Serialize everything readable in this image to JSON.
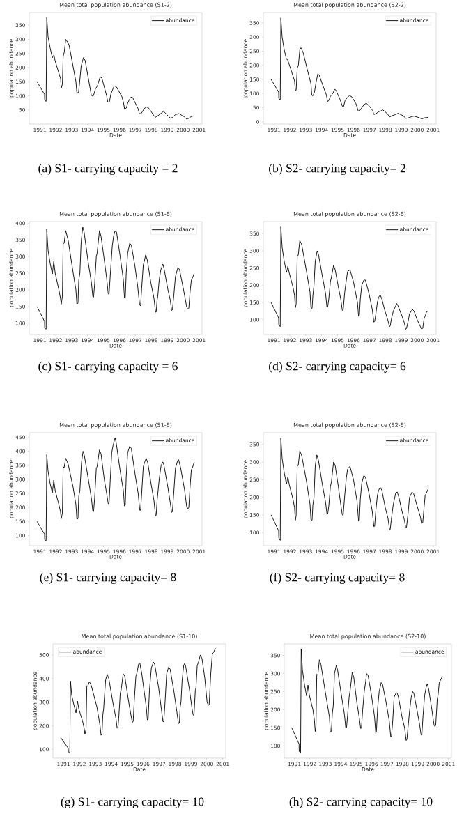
{
  "chart_data": [
    {
      "type": "line",
      "title": "Mean total population abundance (S1-2)",
      "xlabel": "Date",
      "ylabel": "population abundance",
      "annotations": [
        "(a) S1- carrying capacity = 2"
      ],
      "legend": "top right",
      "xlim": [
        1990.34,
        2001.19
      ],
      "xticks": [
        1991,
        1992,
        1993,
        1994,
        1995,
        1996,
        1997,
        1998,
        1999,
        2000,
        2001
      ],
      "ylim": [
        0,
        395
      ],
      "yticks": [
        50,
        100,
        150,
        200,
        250,
        300,
        350
      ],
      "series": [
        {
          "name": "abundance",
          "color": "#000000",
          "x": [
            1990.83,
            1991.3,
            1991.31,
            1991.4,
            1991.44,
            1991.52,
            1991.65,
            1991.79,
            1991.89,
            1991.96,
            1992.31,
            1992.35,
            1992.42,
            1992.47,
            1992.54,
            1992.63,
            1992.75,
            1992.84,
            1993.27,
            1993.33,
            1993.43,
            1993.48,
            1993.6,
            1993.74,
            1993.85,
            1994.23,
            1994.29,
            1994.37,
            1994.5,
            1994.62,
            1994.79,
            1994.9,
            1995.2,
            1995.27,
            1995.37,
            1995.46,
            1995.67,
            1995.81,
            1996.16,
            1996.26,
            1996.33,
            1996.44,
            1996.51,
            1996.61,
            1996.72,
            1996.82,
            1997.17,
            1997.26,
            1997.38,
            1997.56,
            1997.7,
            1997.82,
            1998.17,
            1998.26,
            1998.43,
            1998.78,
            1999.22,
            1999.34,
            1999.51,
            1999.74,
            2000.09,
            2000.21,
            2000.35,
            2000.53,
            2000.7
          ],
          "values": [
            150,
            105,
            85,
            80,
            377,
            310,
            270,
            235,
            245,
            225,
            160,
            128,
            140,
            240,
            255,
            300,
            290,
            280,
            150,
            112,
            110,
            135,
            205,
            235,
            225,
            105,
            99,
            100,
            125,
            135,
            167,
            163,
            100,
            78,
            78,
            105,
            135,
            132,
            97,
            75,
            52,
            57,
            72,
            85,
            95,
            95,
            55,
            36,
            38,
            55,
            60,
            58,
            30,
            24,
            30,
            45,
            20,
            24,
            33,
            37,
            25,
            18,
            20,
            27,
            29
          ]
        }
      ]
    },
    {
      "type": "line",
      "title": "Mean total population abundance (S2-2)",
      "xlabel": "Date",
      "ylabel": "population abundance",
      "annotations": [
        "(b) S2- carrying capacity= 2"
      ],
      "legend": "top right",
      "xlim": [
        1990.34,
        2001.19
      ],
      "xticks": [
        1991,
        1992,
        1993,
        1994,
        1995,
        1996,
        1997,
        1998,
        1999,
        2000,
        2001
      ],
      "ylim": [
        -8,
        387
      ],
      "yticks": [
        0,
        50,
        100,
        150,
        200,
        250,
        300,
        350
      ],
      "series": [
        {
          "name": "abundance",
          "color": "#000000",
          "x": [
            1990.83,
            1991.3,
            1991.31,
            1991.4,
            1991.44,
            1991.52,
            1991.65,
            1991.79,
            1991.85,
            1992.1,
            1992.3,
            1992.35,
            1992.4,
            1992.47,
            1992.54,
            1992.63,
            1992.7,
            1992.84,
            1993.1,
            1993.33,
            1993.38,
            1993.45,
            1993.55,
            1993.65,
            1993.76,
            1993.85,
            1994.1,
            1994.3,
            1994.37,
            1994.45,
            1994.55,
            1994.7,
            1994.82,
            1994.9,
            1995.15,
            1995.3,
            1995.37,
            1995.47,
            1995.6,
            1995.75,
            1995.9,
            1996.15,
            1996.3,
            1996.4,
            1996.55,
            1996.65,
            1996.8,
            1997.0,
            1997.2,
            1997.28,
            1997.4,
            1997.55,
            1997.7,
            1997.85,
            1998.1,
            1998.28,
            1998.4,
            1998.6,
            1998.8,
            1999.1,
            1999.3,
            1999.45,
            1999.65,
            1999.8,
            2000.1,
            2000.3,
            2000.45,
            2000.6,
            2000.7
          ],
          "values": [
            150,
            105,
            83,
            78,
            368,
            300,
            255,
            222,
            222,
            180,
            145,
            110,
            112,
            190,
            200,
            255,
            262,
            245,
            185,
            135,
            95,
            92,
            105,
            140,
            170,
            165,
            125,
            95,
            72,
            75,
            90,
            100,
            115,
            112,
            80,
            55,
            52,
            75,
            85,
            93,
            88,
            65,
            38,
            40,
            52,
            60,
            66,
            55,
            40,
            26,
            28,
            35,
            38,
            42,
            30,
            17,
            21,
            25,
            30,
            22,
            12,
            14,
            18,
            20,
            15,
            10,
            14,
            15,
            16
          ]
        }
      ]
    },
    {
      "type": "line",
      "title": "Mean total population abundance (S1-6)",
      "xlabel": "Date",
      "ylabel": "population abundance",
      "annotations": [
        "(c) S1- carrying capacity = 6"
      ],
      "legend": "top right",
      "xlim": [
        1990.34,
        2001.19
      ],
      "xticks": [
        1991,
        1992,
        1993,
        1994,
        1995,
        1996,
        1997,
        1998,
        1999,
        2000,
        2001
      ],
      "ylim": [
        66,
        405
      ],
      "yticks": [
        100,
        150,
        200,
        250,
        300,
        350,
        400
      ],
      "series": [
        {
          "name": "abundance",
          "color": "#000000",
          "x": [
            1990.83,
            1991.3,
            1991.31,
            1991.4,
            1991.44,
            1991.52,
            1991.65,
            1991.79,
            1991.88,
            1991.97,
            1992.2,
            1992.3,
            1992.35,
            1992.42,
            1992.47,
            1992.53,
            1992.63,
            1992.78,
            1993.1,
            1993.27,
            1993.33,
            1993.4,
            1993.45,
            1993.52,
            1993.6,
            1993.7,
            1993.78,
            1994.05,
            1994.25,
            1994.33,
            1994.38,
            1994.45,
            1994.55,
            1994.6,
            1994.75,
            1994.85,
            1995.05,
            1995.2,
            1995.3,
            1995.35,
            1995.45,
            1995.55,
            1995.63,
            1995.72,
            1995.82,
            1996.05,
            1996.25,
            1996.32,
            1996.37,
            1996.43,
            1996.52,
            1996.65,
            1996.75,
            1996.98,
            1997.15,
            1997.27,
            1997.33,
            1997.4,
            1997.5,
            1997.56,
            1997.65,
            1997.75,
            1997.98,
            1998.17,
            1998.27,
            1998.31,
            1998.37,
            1998.41,
            1998.5,
            1998.6,
            1998.73,
            1998.8,
            1999.05,
            1999.2,
            1999.28,
            1999.33,
            1999.43,
            1999.52,
            1999.68,
            1999.78,
            2000.05,
            2000.22,
            2000.3,
            2000.36,
            2000.44,
            2000.52,
            2000.58,
            2000.7
          ],
          "values": [
            150,
            105,
            85,
            82,
            382,
            320,
            280,
            248,
            285,
            250,
            200,
            175,
            157,
            180,
            340,
            340,
            378,
            350,
            250,
            200,
            158,
            160,
            230,
            250,
            345,
            388,
            375,
            280,
            220,
            180,
            178,
            220,
            300,
            310,
            378,
            360,
            290,
            235,
            188,
            186,
            260,
            330,
            360,
            376,
            374,
            300,
            230,
            175,
            178,
            250,
            310,
            340,
            335,
            270,
            210,
            155,
            152,
            205,
            275,
            285,
            305,
            290,
            220,
            175,
            133,
            133,
            170,
            180,
            230,
            260,
            277,
            265,
            200,
            168,
            138,
            140,
            190,
            240,
            268,
            260,
            195,
            150,
            142,
            145,
            195,
            230,
            235,
            250
          ]
        }
      ]
    },
    {
      "type": "line",
      "title": "Mean total population abundance (S2-6)",
      "xlabel": "Date",
      "ylabel": "population abundance",
      "annotations": [
        "(d) S2- carrying capacity= 6"
      ],
      "legend": "top right",
      "xlim": [
        1990.34,
        2001.19
      ],
      "xticks": [
        1991,
        1992,
        1993,
        1994,
        1995,
        1996,
        1997,
        1998,
        1999,
        2000,
        2001
      ],
      "ylim": [
        57,
        385
      ],
      "yticks": [
        100,
        150,
        200,
        250,
        300,
        350
      ],
      "series": [
        {
          "name": "abundance",
          "color": "#000000",
          "x": [
            1990.83,
            1991.3,
            1991.31,
            1991.4,
            1991.44,
            1991.52,
            1991.65,
            1991.79,
            1991.88,
            1991.97,
            1992.2,
            1992.3,
            1992.35,
            1992.4,
            1992.47,
            1992.53,
            1992.63,
            1992.75,
            1993.05,
            1993.27,
            1993.33,
            1993.4,
            1993.45,
            1993.52,
            1993.6,
            1993.72,
            1993.8,
            1994.05,
            1994.25,
            1994.33,
            1994.38,
            1994.45,
            1994.55,
            1994.62,
            1994.75,
            1994.85,
            1995.05,
            1995.2,
            1995.3,
            1995.35,
            1995.45,
            1995.55,
            1995.63,
            1995.78,
            1996.0,
            1996.25,
            1996.32,
            1996.37,
            1996.43,
            1996.52,
            1996.65,
            1996.75,
            1996.98,
            1997.18,
            1997.28,
            1997.33,
            1997.4,
            1997.5,
            1997.58,
            1997.68,
            1997.78,
            1997.98,
            1998.15,
            1998.26,
            1998.31,
            1998.37,
            1998.5,
            1998.72,
            1998.8,
            1999.05,
            1999.2,
            1999.28,
            1999.33,
            1999.43,
            1999.52,
            1999.7,
            1999.8,
            2000.0,
            2000.2,
            2000.27,
            2000.35,
            2000.44,
            2000.5,
            2000.58,
            2000.65,
            2000.7
          ],
          "values": [
            150,
            105,
            85,
            80,
            370,
            310,
            270,
            237,
            255,
            235,
            195,
            170,
            135,
            145,
            285,
            287,
            330,
            318,
            240,
            180,
            135,
            133,
            170,
            200,
            270,
            300,
            290,
            225,
            175,
            138,
            137,
            160,
            210,
            225,
            258,
            245,
            195,
            160,
            127,
            127,
            180,
            215,
            240,
            245,
            210,
            150,
            110,
            112,
            160,
            200,
            215,
            215,
            175,
            130,
            93,
            95,
            115,
            150,
            165,
            172,
            160,
            125,
            100,
            80,
            82,
            100,
            125,
            147,
            140,
            110,
            90,
            72,
            75,
            95,
            117,
            130,
            125,
            100,
            80,
            73,
            75,
            105,
            110,
            122,
            124,
            123
          ]
        }
      ]
    },
    {
      "type": "line",
      "title": "Mean total population abundance (S1-8)",
      "xlabel": "Date",
      "ylabel": "population abundance",
      "annotations": [
        "(e) S1- carrying capacity= 8"
      ],
      "legend": "top right",
      "xlim": [
        1990.34,
        2001.19
      ],
      "xticks": [
        1991,
        1992,
        1993,
        1994,
        1995,
        1996,
        1997,
        1998,
        1999,
        2000,
        2001
      ],
      "ylim": [
        64,
        466
      ],
      "yticks": [
        100,
        150,
        200,
        250,
        300,
        350,
        400,
        450
      ],
      "series": [
        {
          "name": "abundance",
          "color": "#000000",
          "x": [
            1990.83,
            1991.3,
            1991.31,
            1991.4,
            1991.44,
            1991.52,
            1991.65,
            1991.79,
            1991.88,
            1991.97,
            1992.2,
            1992.3,
            1992.35,
            1992.42,
            1992.47,
            1992.53,
            1992.63,
            1992.78,
            1993.1,
            1993.27,
            1993.33,
            1993.4,
            1993.45,
            1993.52,
            1993.62,
            1993.72,
            1993.8,
            1994.05,
            1994.25,
            1994.33,
            1994.38,
            1994.45,
            1994.55,
            1994.6,
            1994.75,
            1994.85,
            1995.05,
            1995.2,
            1995.3,
            1995.35,
            1995.42,
            1995.52,
            1995.6,
            1995.73,
            1995.8,
            1996.05,
            1996.25,
            1996.32,
            1996.37,
            1996.43,
            1996.52,
            1996.65,
            1996.75,
            1996.98,
            1997.18,
            1997.28,
            1997.33,
            1997.4,
            1997.5,
            1997.58,
            1997.68,
            1997.78,
            1998.0,
            1998.17,
            1998.27,
            1998.31,
            1998.37,
            1998.5,
            1998.62,
            1998.73,
            1998.8,
            1999.05,
            1999.2,
            1999.28,
            1999.33,
            1999.43,
            1999.52,
            1999.65,
            1999.72,
            1999.85,
            2000.1,
            2000.22,
            2000.3,
            2000.36,
            2000.44,
            2000.52,
            2000.58,
            2000.7
          ],
          "values": [
            150,
            105,
            85,
            82,
            388,
            330,
            285,
            252,
            297,
            260,
            210,
            185,
            160,
            180,
            345,
            342,
            375,
            355,
            270,
            210,
            158,
            160,
            240,
            260,
            360,
            400,
            385,
            300,
            230,
            187,
            185,
            235,
            340,
            345,
            405,
            390,
            300,
            250,
            213,
            213,
            290,
            395,
            420,
            448,
            430,
            330,
            260,
            205,
            210,
            310,
            395,
            418,
            410,
            320,
            250,
            190,
            190,
            250,
            345,
            360,
            375,
            360,
            280,
            225,
            170,
            172,
            225,
            300,
            350,
            362,
            350,
            270,
            215,
            182,
            185,
            265,
            340,
            365,
            370,
            340,
            260,
            205,
            195,
            200,
            275,
            335,
            340,
            362
          ]
        }
      ]
    },
    {
      "type": "line",
      "title": "Mean total population abundance (S2-8)",
      "xlabel": "Date",
      "ylabel": "population abundance",
      "annotations": [
        "(f) S2- carrying capacity= 8"
      ],
      "legend": "top right",
      "xlim": [
        1990.34,
        2001.19
      ],
      "xticks": [
        1991,
        1992,
        1993,
        1994,
        1995,
        1996,
        1997,
        1998,
        1999,
        2000,
        2001
      ],
      "ylim": [
        63,
        383
      ],
      "yticks": [
        100,
        150,
        200,
        250,
        300,
        350
      ],
      "series": [
        {
          "name": "abundance",
          "color": "#000000",
          "x": [
            1990.83,
            1991.3,
            1991.31,
            1991.4,
            1991.44,
            1991.52,
            1991.65,
            1991.79,
            1991.88,
            1991.97,
            1992.2,
            1992.3,
            1992.35,
            1992.4,
            1992.47,
            1992.53,
            1992.63,
            1992.75,
            1993.05,
            1993.27,
            1993.33,
            1993.4,
            1993.45,
            1993.52,
            1993.6,
            1993.7,
            1993.8,
            1994.05,
            1994.25,
            1994.33,
            1994.38,
            1994.45,
            1994.55,
            1994.62,
            1994.75,
            1994.85,
            1995.05,
            1995.2,
            1995.3,
            1995.35,
            1995.45,
            1995.55,
            1995.63,
            1995.78,
            1996.0,
            1996.22,
            1996.32,
            1996.37,
            1996.43,
            1996.52,
            1996.65,
            1996.75,
            1996.98,
            1997.18,
            1997.28,
            1997.33,
            1997.4,
            1997.5,
            1997.58,
            1997.68,
            1997.78,
            1998.0,
            1998.17,
            1998.27,
            1998.31,
            1998.37,
            1998.5,
            1998.65,
            1998.75,
            1998.85,
            1999.05,
            1999.2,
            1999.28,
            1999.33,
            1999.43,
            1999.52,
            1999.68,
            1999.78,
            2000.0,
            2000.2,
            2000.28,
            2000.35,
            2000.44,
            2000.5,
            2000.58,
            2000.7
          ],
          "values": [
            150,
            105,
            85,
            78,
            368,
            310,
            270,
            237,
            258,
            235,
            195,
            170,
            135,
            148,
            290,
            290,
            332,
            318,
            245,
            180,
            137,
            135,
            178,
            200,
            290,
            320,
            305,
            235,
            185,
            155,
            152,
            175,
            230,
            245,
            300,
            290,
            230,
            180,
            150,
            148,
            205,
            255,
            280,
            288,
            250,
            190,
            133,
            135,
            195,
            240,
            262,
            258,
            210,
            160,
            117,
            118,
            160,
            205,
            220,
            228,
            220,
            170,
            140,
            107,
            110,
            135,
            180,
            212,
            215,
            200,
            160,
            135,
            113,
            115,
            155,
            200,
            215,
            210,
            175,
            145,
            125,
            128,
            175,
            205,
            212,
            225
          ]
        }
      ]
    },
    {
      "type": "line",
      "title": "Mean total population abundance (S1-10)",
      "xlabel": "Date",
      "ylabel": "population abundance",
      "annotations": [
        "(g) S1- carrying capacity= 10"
      ],
      "legend": "top left",
      "xlim": [
        1990.34,
        2001.19
      ],
      "xticks": [
        1991,
        1992,
        1993,
        1994,
        1995,
        1996,
        1997,
        1998,
        1999,
        2000,
        2001
      ],
      "ylim": [
        63,
        547
      ],
      "yticks": [
        100,
        200,
        300,
        400,
        500
      ],
      "series": [
        {
          "name": "abundance",
          "color": "#000000",
          "x": [
            1990.83,
            1991.3,
            1991.31,
            1991.4,
            1991.44,
            1991.52,
            1991.65,
            1991.79,
            1991.88,
            1991.97,
            1992.2,
            1992.3,
            1992.35,
            1992.42,
            1992.47,
            1992.53,
            1992.63,
            1992.75,
            1993.1,
            1993.3,
            1993.36,
            1993.42,
            1993.47,
            1993.52,
            1993.65,
            1993.75,
            1993.85,
            1994.1,
            1994.3,
            1994.37,
            1994.42,
            1994.47,
            1994.57,
            1994.62,
            1994.75,
            1994.85,
            1995.1,
            1995.28,
            1995.33,
            1995.38,
            1995.45,
            1995.55,
            1995.62,
            1995.72,
            1995.8,
            1995.92,
            1996.1,
            1996.2,
            1996.27,
            1996.32,
            1996.4,
            1996.52,
            1996.65,
            1996.73,
            1996.98,
            1997.15,
            1997.25,
            1997.3,
            1997.38,
            1997.48,
            1997.6,
            1997.7,
            1997.95,
            1998.12,
            1998.22,
            1998.28,
            1998.33,
            1998.38,
            1998.45,
            1998.55,
            1998.62,
            1998.68,
            1998.92,
            1999.08,
            1999.15,
            1999.2,
            1999.28,
            1999.32,
            1999.4,
            1999.48,
            1999.6,
            1999.7,
            1999.88,
            2000.02,
            2000.1,
            2000.15,
            2000.25,
            2000.35,
            2000.42,
            2000.52,
            2000.57
          ],
          "values": [
            150,
            105,
            90,
            85,
            390,
            330,
            290,
            255,
            305,
            270,
            220,
            190,
            165,
            185,
            370,
            368,
            387,
            370,
            280,
            200,
            160,
            165,
            245,
            270,
            395,
            418,
            400,
            300,
            230,
            190,
            192,
            230,
            340,
            350,
            420,
            410,
            300,
            230,
            215,
            218,
            310,
            410,
            425,
            462,
            465,
            420,
            330,
            280,
            225,
            230,
            350,
            445,
            470,
            460,
            360,
            270,
            218,
            218,
            300,
            420,
            448,
            440,
            340,
            260,
            210,
            212,
            280,
            300,
            390,
            455,
            465,
            450,
            350,
            270,
            245,
            248,
            350,
            360,
            455,
            470,
            500,
            485,
            400,
            300,
            287,
            290,
            420,
            505,
            510,
            525,
            527
          ]
        }
      ]
    },
    {
      "type": "line",
      "title": "Mean total population abundance (S2-10)",
      "xlabel": "Date",
      "ylabel": "population abundance",
      "annotations": [
        "(h) S2- carrying capacity= 10"
      ],
      "legend": "top right",
      "xlim": [
        1990.34,
        2001.19
      ],
      "xticks": [
        1991,
        1992,
        1993,
        1994,
        1995,
        1996,
        1997,
        1998,
        1999,
        2000,
        2001
      ],
      "ylim": [
        66,
        382
      ],
      "yticks": [
        100,
        150,
        200,
        250,
        300,
        350
      ],
      "series": [
        {
          "name": "abundance",
          "color": "#000000",
          "x": [
            1990.83,
            1991.3,
            1991.31,
            1991.4,
            1991.44,
            1991.52,
            1991.65,
            1991.79,
            1991.88,
            1991.97,
            1992.2,
            1992.3,
            1992.35,
            1992.4,
            1992.45,
            1992.52,
            1992.62,
            1992.72,
            1993.0,
            1993.27,
            1993.33,
            1993.4,
            1993.46,
            1993.52,
            1993.6,
            1993.72,
            1993.8,
            1994.05,
            1994.25,
            1994.33,
            1994.38,
            1994.45,
            1994.55,
            1994.62,
            1994.75,
            1994.85,
            1995.05,
            1995.2,
            1995.3,
            1995.35,
            1995.43,
            1995.53,
            1995.63,
            1995.68,
            1995.78,
            1996.0,
            1996.2,
            1996.28,
            1996.32,
            1996.4,
            1996.5,
            1996.63,
            1996.72,
            1996.95,
            1997.15,
            1997.25,
            1997.3,
            1997.38,
            1997.47,
            1997.58,
            1997.66,
            1997.75,
            1997.98,
            1998.15,
            1998.25,
            1998.3,
            1998.37,
            1998.47,
            1998.58,
            1998.68,
            1998.75,
            1998.95,
            1999.12,
            1999.22,
            1999.27,
            1999.35,
            1999.45,
            1999.55,
            1999.62,
            1999.72,
            1999.92,
            2000.05,
            2000.12,
            2000.17,
            2000.27,
            2000.32,
            2000.4,
            2000.52,
            2000.6
          ],
          "values": [
            150,
            105,
            85,
            80,
            368,
            310,
            270,
            238,
            268,
            240,
            200,
            170,
            140,
            155,
            298,
            295,
            338,
            325,
            250,
            180,
            138,
            140,
            190,
            210,
            300,
            323,
            310,
            240,
            185,
            150,
            150,
            185,
            235,
            255,
            303,
            290,
            220,
            180,
            148,
            150,
            200,
            250,
            280,
            300,
            295,
            240,
            180,
            135,
            140,
            205,
            250,
            275,
            270,
            220,
            170,
            125,
            127,
            170,
            235,
            245,
            247,
            235,
            180,
            150,
            115,
            118,
            150,
            195,
            235,
            250,
            245,
            200,
            160,
            130,
            132,
            185,
            240,
            262,
            272,
            255,
            200,
            160,
            153,
            158,
            230,
            240,
            275,
            285,
            292
          ]
        }
      ]
    }
  ]
}
